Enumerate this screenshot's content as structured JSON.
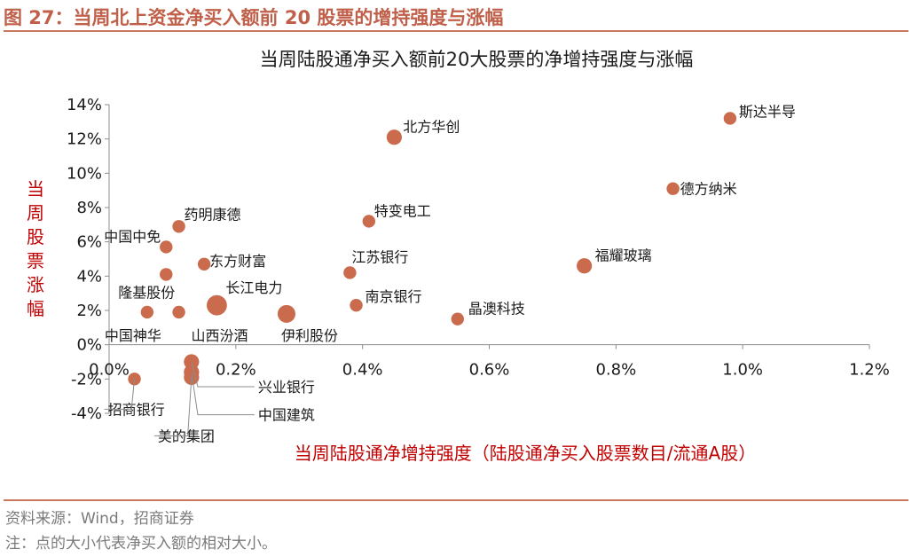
{
  "figure_title": "图 27：当周北上资金净买入额前 20 股票的增持强度与涨幅",
  "footer": {
    "source": "资料来源：Wind，招商证券",
    "note": "注：点的大小代表净买入额的相对大小。"
  },
  "colors": {
    "accent": "#c0604a",
    "marker": "#c96b4c",
    "axis_label": "#c00000"
  },
  "chart_data": {
    "type": "scatter",
    "title": "当周陆股通净买入额前20大股票的净增持强度与涨幅",
    "xlabel": "当周陆股通净增持强度（陆股通净买入股票数目/流通A股）",
    "ylabel": "当周股票涨幅",
    "xlim": [
      0,
      0.012
    ],
    "ylim": [
      -0.04,
      0.14
    ],
    "x_ticks": [
      "0.0%",
      "0.2%",
      "0.4%",
      "0.6%",
      "0.8%",
      "1.0%",
      "1.2%"
    ],
    "y_ticks": [
      "-4%",
      "-2%",
      "0%",
      "2%",
      "4%",
      "6%",
      "8%",
      "10%",
      "12%",
      "14%"
    ],
    "grid": false,
    "marker_size_meaning": "net buy amount (relative)",
    "points": [
      {
        "name": "斯达半导",
        "x": 0.0098,
        "y": 0.132,
        "size": 3
      },
      {
        "name": "北方华创",
        "x": 0.0045,
        "y": 0.121,
        "size": 4
      },
      {
        "name": "德方纳米",
        "x": 0.0089,
        "y": 0.091,
        "size": 3
      },
      {
        "name": "特变电工",
        "x": 0.0041,
        "y": 0.072,
        "size": 3
      },
      {
        "name": "药明康德",
        "x": 0.0011,
        "y": 0.069,
        "size": 3
      },
      {
        "name": "中国中免",
        "x": 0.0009,
        "y": 0.057,
        "size": 3
      },
      {
        "name": "福耀玻璃",
        "x": 0.0075,
        "y": 0.046,
        "size": 4
      },
      {
        "name": "东方财富",
        "x": 0.0015,
        "y": 0.047,
        "size": 3
      },
      {
        "name": "江苏银行",
        "x": 0.0038,
        "y": 0.042,
        "size": 3
      },
      {
        "name": "隆基股份",
        "x": 0.0009,
        "y": 0.041,
        "size": 3
      },
      {
        "name": "南京银行",
        "x": 0.0039,
        "y": 0.023,
        "size": 3
      },
      {
        "name": "长江电力",
        "x": 0.0017,
        "y": 0.023,
        "size": 6
      },
      {
        "name": "伊利股份",
        "x": 0.0028,
        "y": 0.018,
        "size": 5
      },
      {
        "name": "中国神华",
        "x": 0.0006,
        "y": 0.019,
        "size": 3
      },
      {
        "name": "山西汾酒",
        "x": 0.0011,
        "y": 0.019,
        "size": 3
      },
      {
        "name": "晶澳科技",
        "x": 0.0055,
        "y": 0.015,
        "size": 3
      },
      {
        "name": "兴业银行",
        "x": 0.0013,
        "y": -0.01,
        "size": 4
      },
      {
        "name": "中国建筑",
        "x": 0.0013,
        "y": -0.016,
        "size": 4
      },
      {
        "name": "美的集团",
        "x": 0.0013,
        "y": -0.019,
        "size": 4
      },
      {
        "name": "招商银行",
        "x": 0.0004,
        "y": -0.02,
        "size": 3
      }
    ]
  }
}
